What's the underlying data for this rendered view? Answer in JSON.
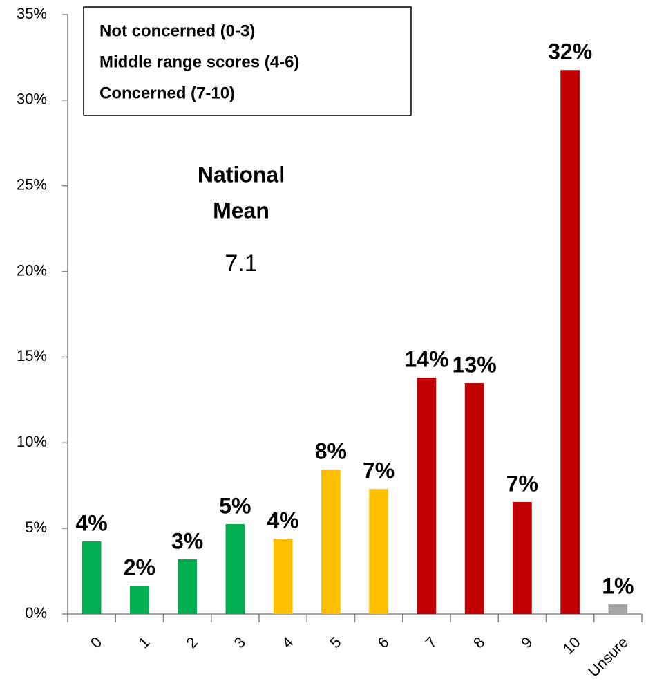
{
  "chart_data": {
    "type": "bar",
    "categories": [
      "0",
      "1",
      "2",
      "3",
      "4",
      "5",
      "6",
      "7",
      "8",
      "9",
      "10",
      "Unsure"
    ],
    "values": [
      4.24,
      1.65,
      3.19,
      5.25,
      4.4,
      8.43,
      7.3,
      13.8,
      13.48,
      6.54,
      31.76,
      0.56
    ],
    "value_labels": [
      "4%",
      "2%",
      "3%",
      "5%",
      "4%",
      "8%",
      "7%",
      "14%",
      "13%",
      "7%",
      "32%",
      "1%"
    ],
    "colors": [
      "#00b050",
      "#00b050",
      "#00b050",
      "#00b050",
      "#ffc000",
      "#ffc000",
      "#ffc000",
      "#c00000",
      "#c00000",
      "#c00000",
      "#c00000",
      "#a6a6a6"
    ],
    "legend": [
      "Not concerned (0-3)",
      "Middle range scores (4-6)",
      "Concerned (7-10)"
    ],
    "annotation": {
      "title": [
        "National",
        "Mean"
      ],
      "value": 7.1
    },
    "ylim": [
      0,
      35
    ],
    "yticks": [
      {
        "value": 0,
        "label": "0%"
      },
      {
        "value": 5,
        "label": "5%"
      },
      {
        "value": 10,
        "label": "10%"
      },
      {
        "value": 15,
        "label": "15%"
      },
      {
        "value": 20,
        "label": "20%"
      },
      {
        "value": 25,
        "label": "25%"
      },
      {
        "value": 30,
        "label": "30%"
      },
      {
        "value": 35,
        "label": "35%"
      }
    ]
  }
}
